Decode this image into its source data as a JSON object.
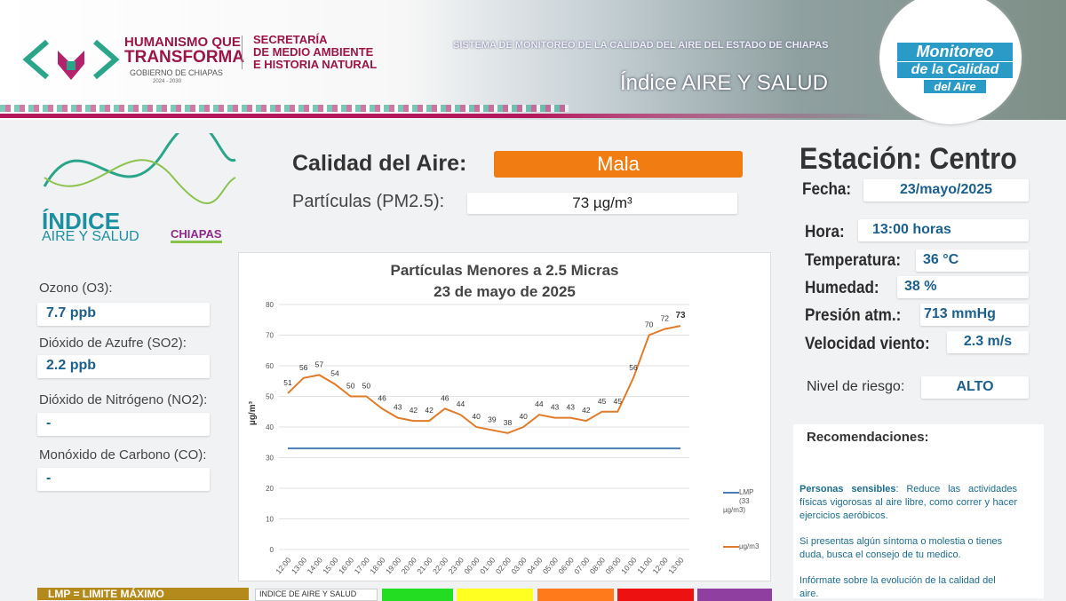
{
  "header": {
    "gov_line1": "HUMANISMO QUE",
    "gov_line2": "TRANSFORMA",
    "gov_name": "GOBIERNO DE CHIAPAS",
    "gov_years": "2024 - 2030",
    "secretaria_line1": "SECRETARÍA",
    "secretaria_line2": "DE MEDIO AMBIENTE",
    "secretaria_line3": "E HISTORIA NATURAL",
    "system_title": "SISTEMA DE MONITOREO DE LA CALIDAD DEL AIRE DEL ESTADO DE CHIAPAS",
    "index_title": "Índice AIRE Y SALUD",
    "badge_line1": "Monitoreo",
    "badge_line2": "de la Calidad",
    "badge_line3": "del Aire"
  },
  "brand": {
    "indice": "ÍNDICE",
    "aire_salud": "AIRE Y SALUD",
    "chiapas": "CHIAPAS"
  },
  "quality": {
    "label": "Calidad del Aire:",
    "value": "Mala",
    "color": "#f07c12",
    "pm_label": "Partículas (PM2.5):",
    "pm_value": "73 µg/m³"
  },
  "pollutants": [
    {
      "label": "Ozono (O3):",
      "value": "7.7 ppb"
    },
    {
      "label": "Dióxido de Azufre  (SO2):",
      "value": "2.2 ppb"
    },
    {
      "label": "Dióxido de Nitrógeno (NO2):",
      "value": "-"
    },
    {
      "label": "Monóxido de Carbono (CO):",
      "value": "-"
    }
  ],
  "station": {
    "title": "Estación: Centro",
    "fecha_label": "Fecha:",
    "fecha": "23/mayo/2025",
    "hora_label": "Hora:",
    "hora": "13:00 horas",
    "temp_label": "Temperatura:",
    "temp": "36 °C",
    "hum_label": "Humedad:",
    "hum": "38 %",
    "pres_label": "Presión atm.:",
    "pres": "713 mmHg",
    "viento_label": "Velocidad viento:",
    "viento": "2.3 m/s",
    "riesgo_label": "Nivel de riesgo:",
    "riesgo": "ALTO"
  },
  "recommendations": {
    "title": "Recomendaciones:",
    "p1_bold": "Personas sensibles",
    "p1": ": Reduce las actividades físicas vigorosas al aire libre, como correr y hacer ejercicios aeróbicos.",
    "p2": "Si presentas algún síntoma o molestia o tienes duda, busca el consejo de tu medico.",
    "p3": "Infórmate sobre la evolución de la calidad del aire."
  },
  "footer": {
    "lmp": "LMP = LIMITE MÁXIMO",
    "scale_label": "INDICE DE AIRE Y SALUD",
    "scale_colors": [
      "#22dd22",
      "#ffff22",
      "#ff7a1a",
      "#ee1111",
      "#8e3fa0"
    ]
  },
  "chart_data": {
    "type": "line",
    "title": "Partículas Menores a 2.5 Micras",
    "subtitle": "23 de mayo de 2025",
    "ylabel": "µg/m³",
    "ylim": [
      0,
      80
    ],
    "yticks": [
      0,
      10,
      20,
      30,
      40,
      50,
      60,
      70,
      80
    ],
    "grid": true,
    "legend": "right",
    "categories": [
      "12:00",
      "13:00",
      "14:00",
      "15:00",
      "16:00",
      "17:00",
      "18:00",
      "19:00",
      "20:00",
      "21:00",
      "22:00",
      "23:00",
      "00:00",
      "01:00",
      "02:00",
      "03:00",
      "04:00",
      "05:00",
      "06:00",
      "07:00",
      "08:00",
      "09:00",
      "10:00",
      "11:00",
      "12:00",
      "13:00"
    ],
    "series": [
      {
        "name": "µg/m3",
        "color": "#e07b2a",
        "values": [
          51,
          56,
          57,
          54,
          50,
          50,
          46,
          43,
          42,
          42,
          46,
          44,
          40,
          39,
          38,
          40,
          44,
          43,
          43,
          42,
          45,
          45,
          56,
          70,
          72,
          73
        ]
      },
      {
        "name": "LMP",
        "name2": "(33 µg/m3)",
        "color": "#4a7fb5",
        "values": [
          33,
          33,
          33,
          33,
          33,
          33,
          33,
          33,
          33,
          33,
          33,
          33,
          33,
          33,
          33,
          33,
          33,
          33,
          33,
          33,
          33,
          33,
          33,
          33,
          33,
          33
        ]
      }
    ]
  }
}
